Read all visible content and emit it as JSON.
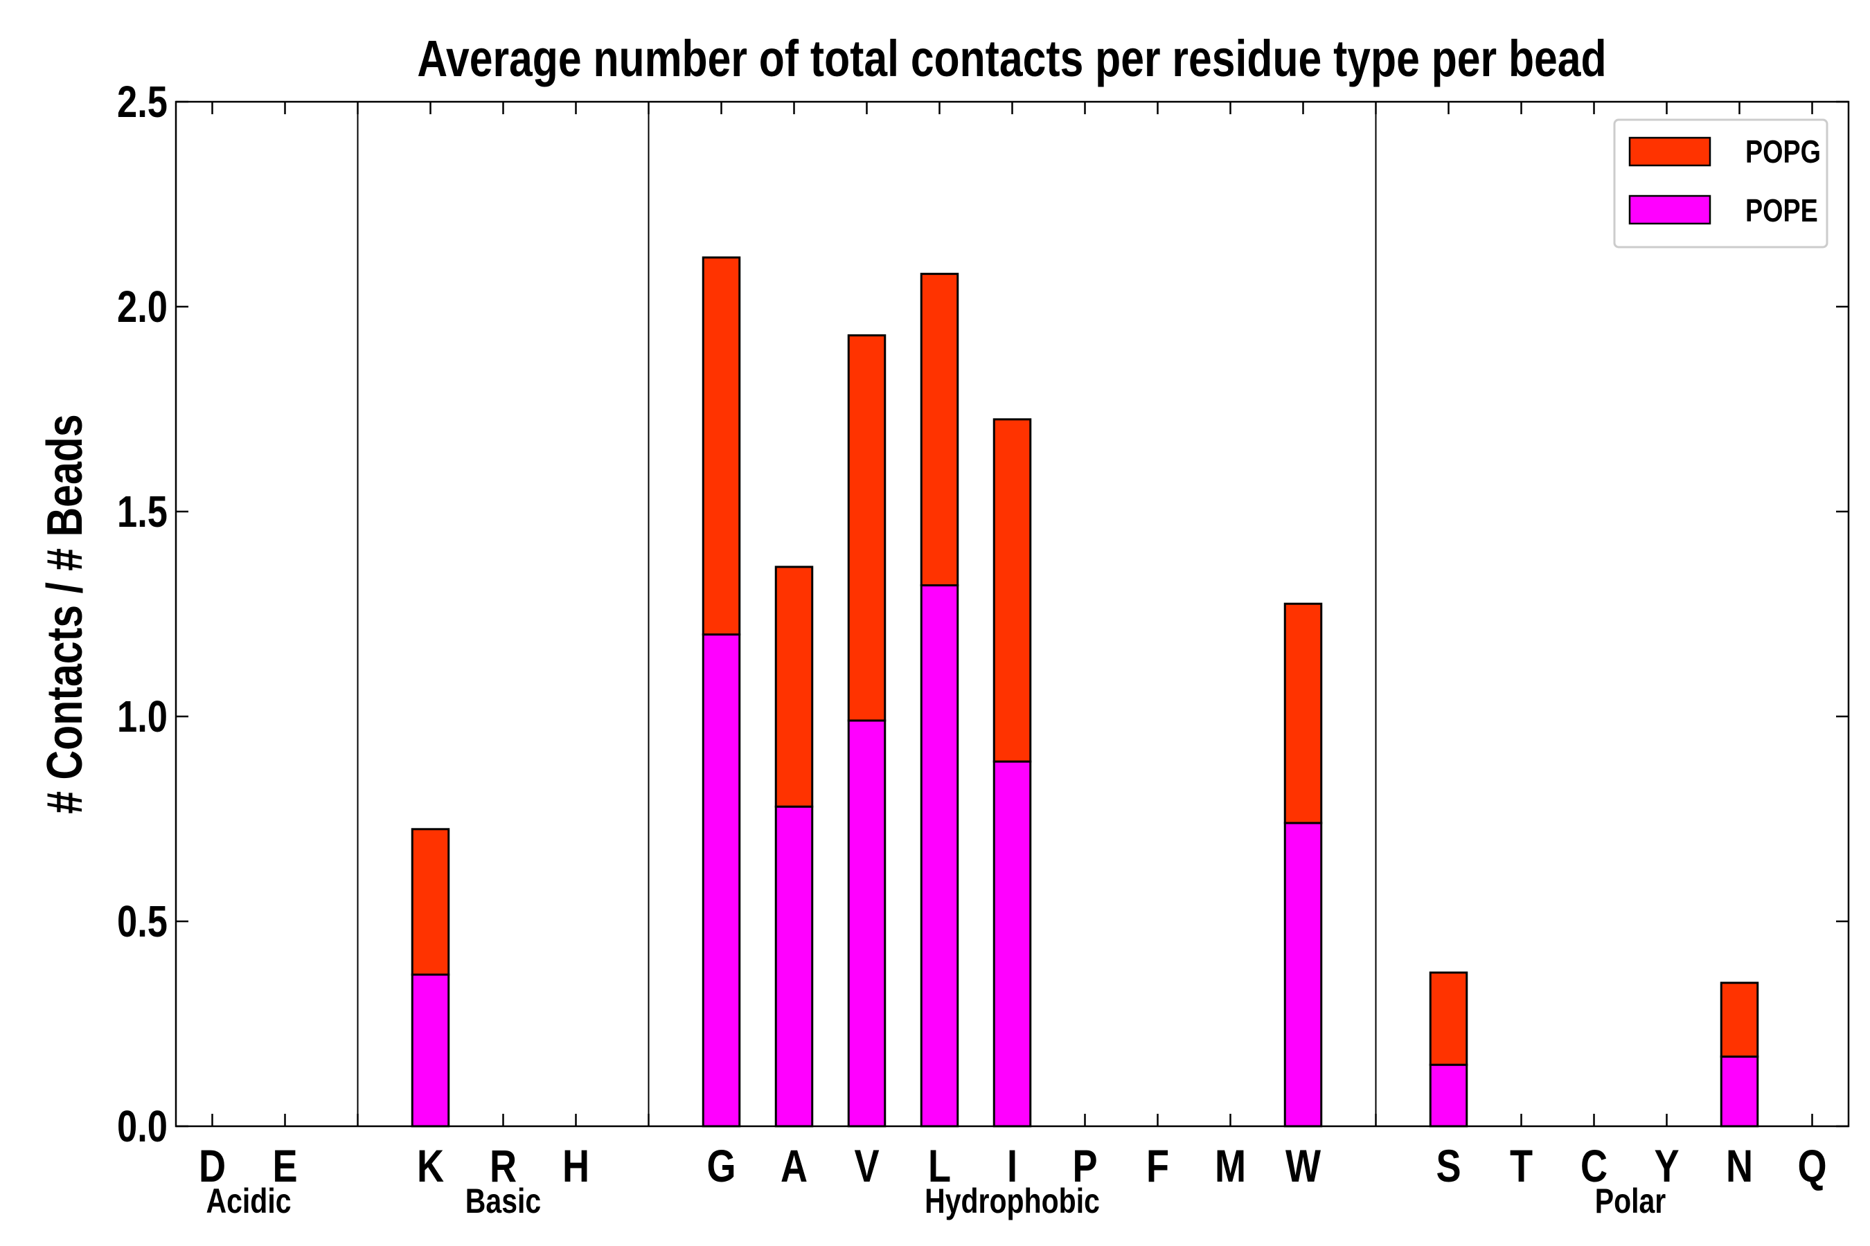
{
  "chart_data": {
    "type": "bar",
    "stacked": true,
    "title": "Average number of total contacts per residue type per bead",
    "xlabel": "",
    "ylabel": "# Contacts / # Beads",
    "ylim": [
      0,
      2.5
    ],
    "yticks": [
      "0.0",
      "0.5",
      "1.0",
      "1.5",
      "2.0",
      "2.5"
    ],
    "xlim": [
      -0.5,
      22.5
    ],
    "categories": [
      "D",
      "E",
      "",
      "K",
      "R",
      "H",
      "",
      "G",
      "A",
      "V",
      "L",
      "I",
      "P",
      "F",
      "M",
      "W",
      "",
      "S",
      "T",
      "C",
      "Y",
      "N",
      "Q"
    ],
    "series": [
      {
        "name": "POPE",
        "color": "#ff00ff",
        "values": [
          0,
          0,
          0,
          0.37,
          0,
          0,
          0,
          1.2,
          0.78,
          0.99,
          1.32,
          0.89,
          0,
          0,
          0,
          0.74,
          0,
          0.15,
          0,
          0,
          0,
          0.17,
          0
        ]
      },
      {
        "name": "POPG",
        "color": "#ff3300",
        "values": [
          0,
          0,
          0,
          0.355,
          0,
          0,
          0,
          0.92,
          0.585,
          0.94,
          0.76,
          0.835,
          0,
          0,
          0,
          0.535,
          0,
          0.225,
          0,
          0,
          0,
          0.18,
          0
        ]
      }
    ],
    "groups": [
      {
        "label": "Acidic",
        "slots": [
          0,
          1
        ]
      },
      {
        "label": "Basic",
        "slots": [
          3,
          4,
          5
        ]
      },
      {
        "label": "Hydrophobic",
        "slots": [
          7,
          8,
          9,
          10,
          11,
          12,
          13,
          14,
          15
        ]
      },
      {
        "label": "Polar",
        "slots": [
          17,
          18,
          19,
          20,
          21,
          22
        ]
      }
    ],
    "group_dividers": [
      2,
      6,
      16
    ],
    "legend": {
      "position": "top-right",
      "entries": [
        "POPG",
        "POPE"
      ]
    },
    "grid": false
  }
}
